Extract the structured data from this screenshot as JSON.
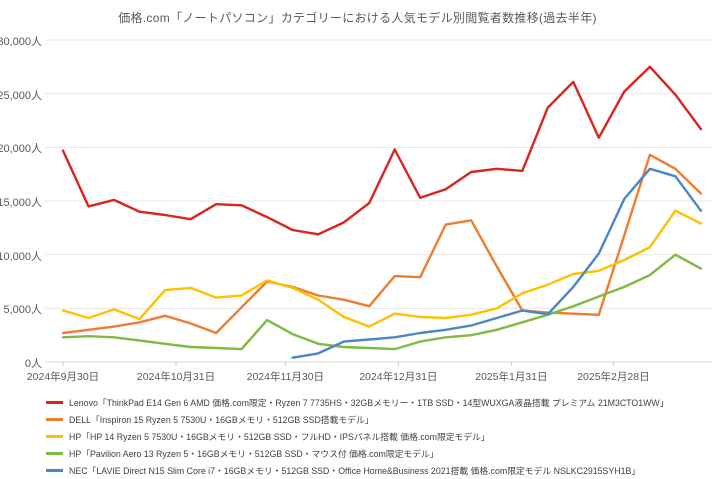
{
  "title": "価格.com「ノートパソコン」カテゴリーにおける人気モデル別閲覧者数推移(過去半年)",
  "chart_data": {
    "type": "line",
    "unit": "人",
    "grid": true,
    "legend_position": "bottom-left",
    "y_axis": {
      "min": 0,
      "max": 30000,
      "step": 5000,
      "tick_labels": [
        "0人",
        "5,000人",
        "10,000人",
        "15,000人",
        "20,000人",
        "25,000人",
        "30,000人"
      ]
    },
    "x_axis": {
      "tick_labels": [
        "2024年9月30日",
        "2024年10月31日",
        "2024年11月30日",
        "2024年12月31日",
        "2025年1月31日",
        "2025年2月28日"
      ],
      "tick_day_offsets": [
        0,
        31,
        61,
        92,
        123,
        151
      ],
      "point_interval_days": 7,
      "num_points": 26
    },
    "series": [
      {
        "maker": "lenovo",
        "color": "#d7261e",
        "name": "Lenovo「ThinkPad E14 Gen 6 AMD 価格.com限定・Ryzen 7 7735HS・32GBメモリー・1TB SSD・14型WUXGA液晶搭載 プレミアム 21M3CTO1WW」",
        "values": [
          19700,
          14500,
          15100,
          14000,
          13700,
          13300,
          14700,
          14600,
          13500,
          12300,
          11900,
          13000,
          14800,
          19800,
          15300,
          16100,
          17700,
          18000,
          17800,
          23700,
          26100,
          20900,
          25200,
          27500,
          24900,
          21700
        ]
      },
      {
        "maker": "dell",
        "color": "#ed7d31",
        "name": "DELL「Inspiron 15 Ryzen 5 7530U・16GBメモリ・512GB SSD搭載モデル」",
        "values": [
          2700,
          3000,
          3300,
          3700,
          4300,
          3600,
          2700,
          5100,
          7500,
          7000,
          6200,
          5800,
          5200,
          8000,
          7900,
          12800,
          13200,
          8900,
          4800,
          4600,
          4500,
          4400,
          11800,
          19300,
          18000,
          15700
        ]
      },
      {
        "maker": "hp-14",
        "color": "#ffc000",
        "name": "HP「HP 14 Ryzen 5 7530U・16GBメモリ・512GB SSD・フルHD・IPSパネル搭載 価格.com限定モデル」",
        "values": [
          4800,
          4100,
          4900,
          4000,
          6700,
          6900,
          6000,
          6200,
          7600,
          6900,
          5800,
          4200,
          3300,
          4500,
          4200,
          4100,
          4400,
          5000,
          6400,
          7200,
          8200,
          8500,
          9500,
          10700,
          14100,
          12900
        ]
      },
      {
        "maker": "hp-pavilion",
        "color": "#7fba42",
        "name": "HP「Pavilion Aero 13 Ryzen 5・16GBメモリ・512GB SSD・マウス付 価格.com限定モデル」",
        "values": [
          2300,
          2400,
          2300,
          2000,
          1700,
          1400,
          1300,
          1200,
          3900,
          2600,
          1700,
          1400,
          1300,
          1200,
          1900,
          2300,
          2500,
          3000,
          3700,
          4400,
          5200,
          6100,
          7000,
          8100,
          10000,
          8700
        ]
      },
      {
        "maker": "nec",
        "color": "#4a86c8",
        "name": "NEC「LAVIE Direct N15 Slim Core i7・16GBメモリ・512GB SSD・Office Home&Business 2021搭載 価格.com限定モデル NSLKC2915SYH1B」",
        "values": [
          null,
          null,
          null,
          null,
          null,
          null,
          null,
          null,
          null,
          400,
          800,
          1900,
          2100,
          2300,
          2700,
          3000,
          3400,
          4100,
          4800,
          4450,
          7000,
          10100,
          15200,
          18000,
          17300,
          14100
        ]
      }
    ]
  }
}
